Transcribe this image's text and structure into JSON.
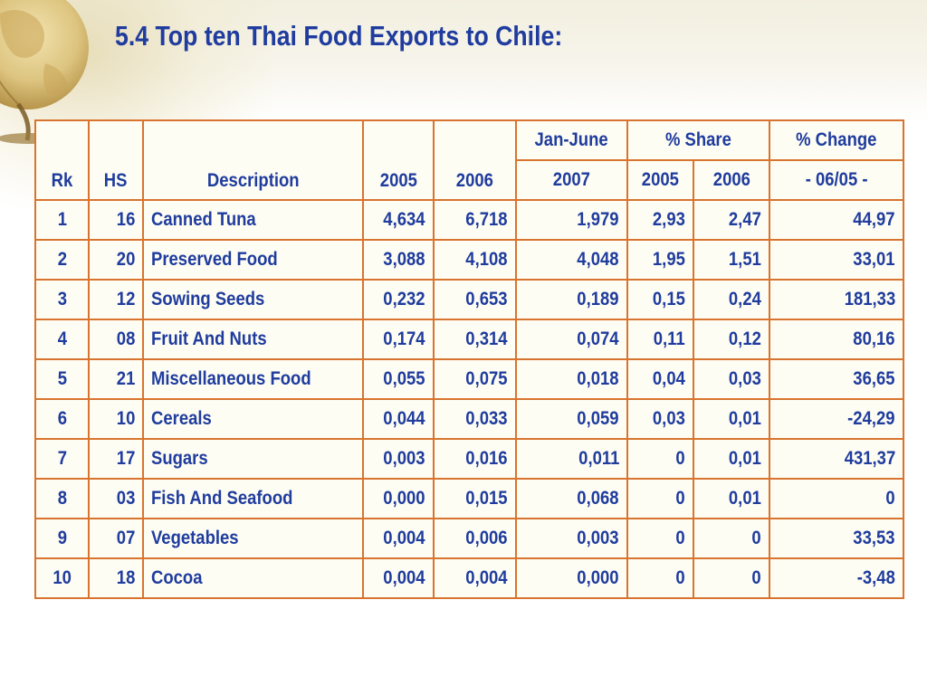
{
  "title": "5.4 Top ten Thai Food Exports to Chile:",
  "colors": {
    "title": "#1f3c9e",
    "text": "#1f3c9e",
    "border": "#d8742f",
    "cell_bg": "#fefdf3"
  },
  "header": {
    "rk": "Rk",
    "hs": "HS",
    "description": "Description",
    "y2005": "2005",
    "y2006": "2006",
    "jan_june": "Jan-June",
    "jan_june_year": "2007",
    "share": "% Share",
    "share_2005": "2005",
    "share_2006": "2006",
    "change": "% Change",
    "change_period": "-  06/05  -"
  },
  "rows": [
    {
      "rk": "1",
      "hs": "16",
      "description": "Canned Tuna",
      "y2005": "4,634",
      "y2006": "6,718",
      "jan_june_2007": "1,979",
      "share_2005": "2,93",
      "share_2006": "2,47",
      "change": "44,97"
    },
    {
      "rk": "2",
      "hs": "20",
      "description": "Preserved Food",
      "y2005": "3,088",
      "y2006": "4,108",
      "jan_june_2007": "4,048",
      "share_2005": "1,95",
      "share_2006": "1,51",
      "change": "33,01"
    },
    {
      "rk": "3",
      "hs": "12",
      "description": "Sowing Seeds",
      "y2005": "0,232",
      "y2006": "0,653",
      "jan_june_2007": "0,189",
      "share_2005": "0,15",
      "share_2006": "0,24",
      "change": "181,33"
    },
    {
      "rk": "4",
      "hs": "08",
      "description": "Fruit And Nuts",
      "y2005": "0,174",
      "y2006": "0,314",
      "jan_june_2007": "0,074",
      "share_2005": "0,11",
      "share_2006": "0,12",
      "change": "80,16"
    },
    {
      "rk": "5",
      "hs": "21",
      "description": "Miscellaneous Food",
      "y2005": "0,055",
      "y2006": "0,075",
      "jan_june_2007": "0,018",
      "share_2005": "0,04",
      "share_2006": "0,03",
      "change": "36,65"
    },
    {
      "rk": "6",
      "hs": "10",
      "description": "Cereals",
      "y2005": "0,044",
      "y2006": "0,033",
      "jan_june_2007": "0,059",
      "share_2005": "0,03",
      "share_2006": "0,01",
      "change": "-24,29"
    },
    {
      "rk": "7",
      "hs": "17",
      "description": "Sugars",
      "y2005": "0,003",
      "y2006": "0,016",
      "jan_june_2007": "0,011",
      "share_2005": "0",
      "share_2006": "0,01",
      "change": "431,37"
    },
    {
      "rk": "8",
      "hs": "03",
      "description": "Fish And Seafood",
      "y2005": "0,000",
      "y2006": "0,015",
      "jan_june_2007": "0,068",
      "share_2005": "0",
      "share_2006": "0,01",
      "change": "0"
    },
    {
      "rk": "9",
      "hs": "07",
      "description": "Vegetables",
      "y2005": "0,004",
      "y2006": "0,006",
      "jan_june_2007": "0,003",
      "share_2005": "0",
      "share_2006": "0",
      "change": "33,53"
    },
    {
      "rk": "10",
      "hs": "18",
      "description": "Cocoa",
      "y2005": "0,004",
      "y2006": "0,004",
      "jan_june_2007": "0,000",
      "share_2005": "0",
      "share_2006": "0",
      "change": "-3,48"
    }
  ]
}
